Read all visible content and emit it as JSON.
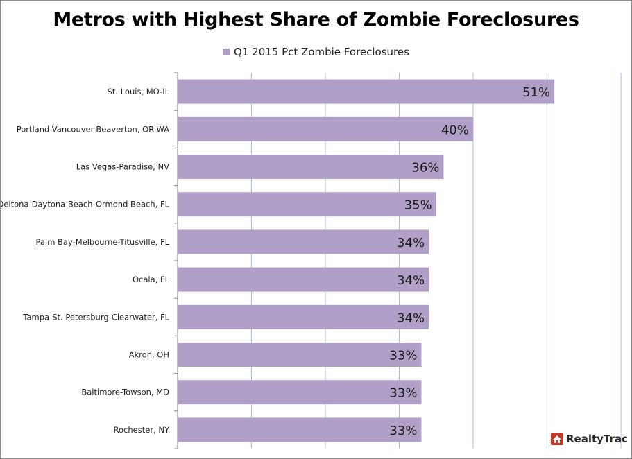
{
  "chart_data": {
    "type": "bar",
    "orientation": "horizontal",
    "title": "Metros with Highest Share of Zombie Foreclosures",
    "series": [
      {
        "name": "Q1 2015 Pct Zombie Foreclosures",
        "color": "#b09fc7",
        "values": [
          51,
          40,
          36,
          35,
          34,
          34,
          34,
          33,
          33,
          33
        ]
      }
    ],
    "categories": [
      "St. Louis, MO-IL",
      "Portland-Vancouver-Beaverton, OR-WA",
      "Las Vegas-Paradise, NV",
      "Deltona-Daytona Beach-Ormond Beach, FL",
      "Palm Bay-Melbourne-Titusville, FL",
      "Ocala, FL",
      "Tampa-St. Petersburg-Clearwater, FL",
      "Akron, OH",
      "Baltimore-Towson, MD",
      "Rochester, NY"
    ],
    "data_labels": [
      "51%",
      "40%",
      "36%",
      "35%",
      "34%",
      "34%",
      "34%",
      "33%",
      "33%",
      "33%"
    ],
    "xlim": [
      0,
      60
    ],
    "grid": true,
    "legend_position": "top"
  },
  "logo": {
    "text": "RealtyTrac"
  },
  "colors": {
    "gridline": "#a8c0dc",
    "axis": "#868686",
    "logo_red": "#c0392b"
  }
}
